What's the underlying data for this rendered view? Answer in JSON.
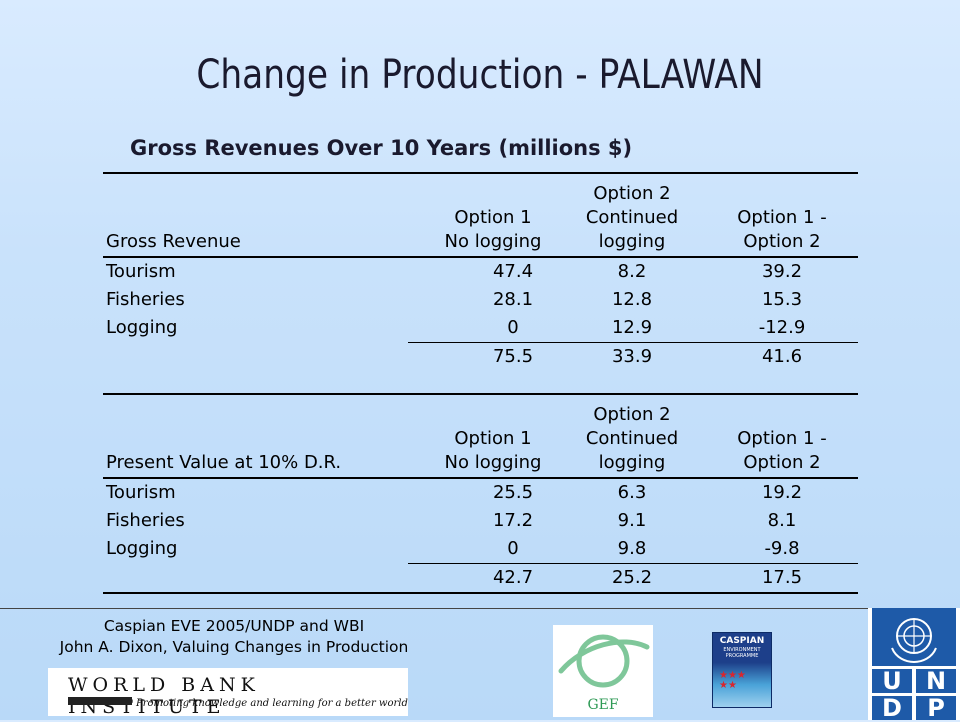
{
  "title": "Change in Production - PALAWAN",
  "subtitle": "Gross Revenues Over 10 Years (millions $)",
  "table1": {
    "label_header": "Gross Revenue",
    "headers": [
      [
        "Option 1",
        "No logging"
      ],
      [
        "Option 2",
        "Continued",
        "logging"
      ],
      [
        "Option 1 -",
        "Option 2"
      ]
    ],
    "rows": [
      {
        "label": "Tourism",
        "v": [
          "47.4",
          "8.2",
          "39.2"
        ]
      },
      {
        "label": "Fisheries",
        "v": [
          "28.1",
          "12.8",
          "15.3"
        ]
      },
      {
        "label": "Logging",
        "v": [
          "0",
          "12.9",
          "-12.9"
        ]
      }
    ],
    "totals": [
      "75.5",
      "33.9",
      "41.6"
    ]
  },
  "table2": {
    "label_header": "Present Value at 10% D.R.",
    "headers": [
      [
        "Option 1",
        "No logging"
      ],
      [
        "Option 2",
        "Continued",
        "logging"
      ],
      [
        "Option 1 -",
        "Option 2"
      ]
    ],
    "rows": [
      {
        "label": "Tourism",
        "v": [
          "25.5",
          "6.3",
          "19.2"
        ]
      },
      {
        "label": "Fisheries",
        "v": [
          "17.2",
          "9.1",
          "8.1"
        ]
      },
      {
        "label": "Logging",
        "v": [
          "0",
          "9.8",
          "-9.8"
        ]
      }
    ],
    "totals": [
      "42.7",
      "25.2",
      "17.5"
    ]
  },
  "footer": {
    "line1": "Caspian EVE 2005/UNDP and WBI",
    "line2": "John A. Dixon, Valuing Changes in Production"
  },
  "logos": {
    "wbi_name": "WORLD BANK INSTITUTE",
    "wbi_tagline": "Promoting knowledge and learning for a better world",
    "gef_label": "GEF",
    "cep_line1": "CASPIAN",
    "cep_line2": "ENVIRONMENT PROGRAMME",
    "undp_letters": [
      "U",
      "N",
      "D",
      "P"
    ]
  }
}
